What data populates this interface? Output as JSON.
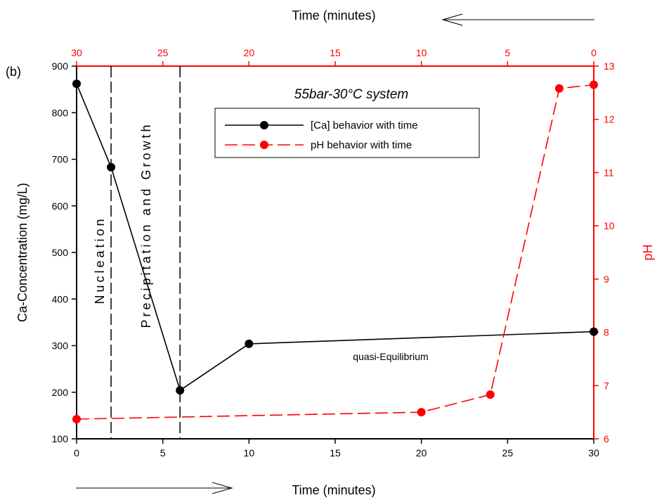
{
  "chart_data": {
    "type": "line",
    "panel_label": "(b)",
    "title": "55bar-30°C system",
    "bottom_axis": {
      "label": "Time (minutes)",
      "range": [
        0,
        30
      ],
      "ticks": [
        0,
        5,
        10,
        15,
        20,
        25,
        30
      ]
    },
    "top_axis": {
      "label": "Time (minutes)",
      "range": [
        30,
        0
      ],
      "ticks": [
        30,
        25,
        20,
        15,
        10,
        5,
        0
      ]
    },
    "left_axis": {
      "label": "Ca-Concentration (mg/L)",
      "range": [
        100,
        900
      ],
      "ticks": [
        100,
        200,
        300,
        400,
        500,
        600,
        700,
        800,
        900
      ]
    },
    "right_axis": {
      "label": "pH",
      "range": [
        6,
        13
      ],
      "ticks": [
        6,
        7,
        8,
        9,
        10,
        11,
        12,
        13
      ]
    },
    "series": [
      {
        "name": "[Ca] behavior with time",
        "axis": "bottom-left",
        "color": "#000000",
        "dash": "solid",
        "x": [
          0,
          2,
          6,
          10,
          30
        ],
        "y": [
          862,
          683,
          204,
          304,
          330
        ]
      },
      {
        "name": "pH behavior with time",
        "axis": "bottom-right",
        "color": "#ff0000",
        "dash": "dashed",
        "x": [
          0,
          20,
          24,
          28,
          30
        ],
        "y": [
          6.37,
          6.5,
          6.83,
          12.58,
          12.65
        ]
      }
    ],
    "vertical_markers": [
      2,
      6
    ],
    "annotations": {
      "nucleation": "Nucleation",
      "precipitation": "Precipitation and Growth",
      "equilibrium": "quasi-Equilibrium"
    },
    "legend_position": "top-center",
    "grid": false
  }
}
